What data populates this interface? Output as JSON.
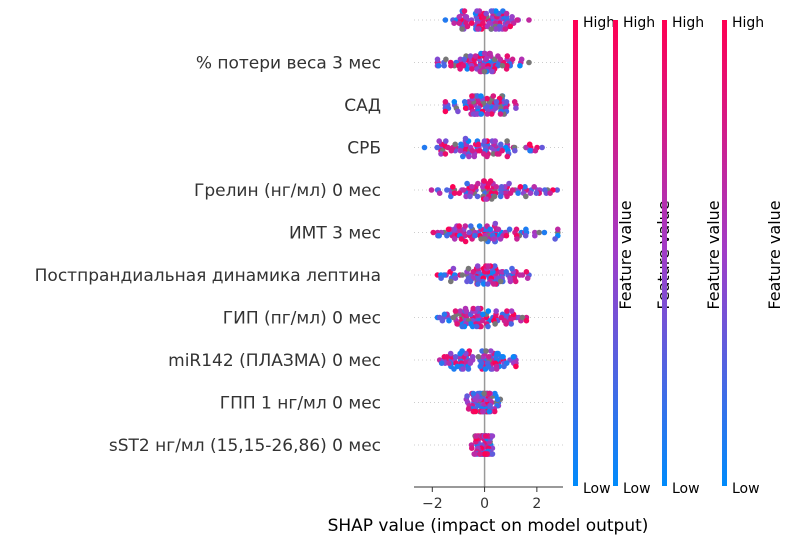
{
  "chart_data": {
    "type": "scatter",
    "subtype": "beeswarm",
    "xlabel": "SHAP value (impact on model output)",
    "xlim": [
      -2.7,
      3.0
    ],
    "xticks": [
      -2,
      0,
      2
    ],
    "xtick_labels": [
      "−2",
      "0",
      "2"
    ],
    "zero_line": true,
    "grid": "horizontal-dotted",
    "colorbar_count": 4,
    "colorbar_labels": {
      "high": "High",
      "low": "Low",
      "title": "Feature value"
    },
    "colors": {
      "high": "#ff0052",
      "mid": "#a03cc8",
      "low": "#008bfb",
      "missing": "#777777"
    },
    "features": [
      {
        "label": "",
        "min": -1.5,
        "max": 1.7
      },
      {
        "label": "% потери веса 3 мес",
        "min": -1.8,
        "max": 1.7
      },
      {
        "label": "САД",
        "min": -1.5,
        "max": 1.2
      },
      {
        "label": "СРБ",
        "min": -2.3,
        "max": 2.2
      },
      {
        "label": "Грелин (нг/мл) 0 мес",
        "min": -2.3,
        "max": 2.8
      },
      {
        "label": "ИМТ 3 мес",
        "min": -2.4,
        "max": 2.8
      },
      {
        "label": "Постпрандиальная динамика лептина",
        "min": -1.8,
        "max": 1.7
      },
      {
        "label": "ГИП (пг/мл) 0 мес",
        "min": -1.8,
        "max": 1.6
      },
      {
        "label": "miR142 (ПЛАЗМА) 0 мес",
        "min": -2.4,
        "max": 1.2
      },
      {
        "label": "ГПП 1 нг/мл 0 мес",
        "min": -0.7,
        "max": 0.6
      },
      {
        "label": "sST2 нг/мл (15,15-26,86) 0 мес",
        "min": -0.5,
        "max": 0.3
      }
    ]
  }
}
